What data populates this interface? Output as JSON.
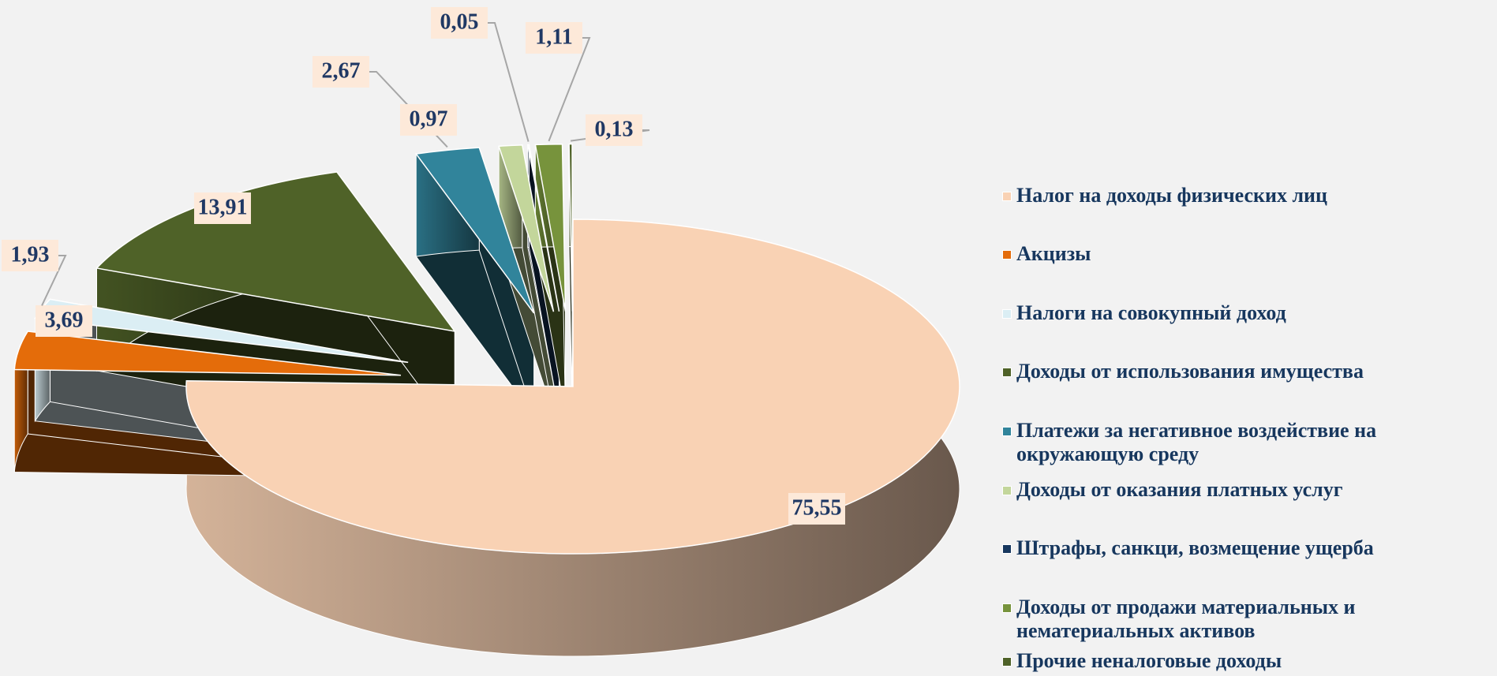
{
  "chart_data": {
    "type": "pie3d",
    "categories": [
      "Налог на доходы физических лиц",
      "Акцизы",
      "Налоги на совокупный доход",
      "Доходы от использования имущества",
      "Платежи за негативное воздействие на окружающую среду",
      "Доходы от оказания платных услуг",
      "Штрафы, санкци, возмещение ущерба",
      "Доходы от продажи материальных и нематериальных активов",
      "Прочие неналоговые доходы"
    ],
    "values": [
      75.55,
      3.69,
      1.93,
      13.91,
      2.67,
      0.97,
      0.05,
      1.11,
      0.13
    ],
    "value_labels": [
      "75,55",
      "3,69",
      "1,93",
      "13,91",
      "2,67",
      "0,97",
      "0,05",
      "1,11",
      "0,13"
    ],
    "colors": [
      "#f9d2b4",
      "#e46c0a",
      "#dbeef4",
      "#4f6228",
      "#31849b",
      "#c3d69b",
      "#17375e",
      "#77933c",
      "#4f6228"
    ],
    "legend": "right"
  }
}
